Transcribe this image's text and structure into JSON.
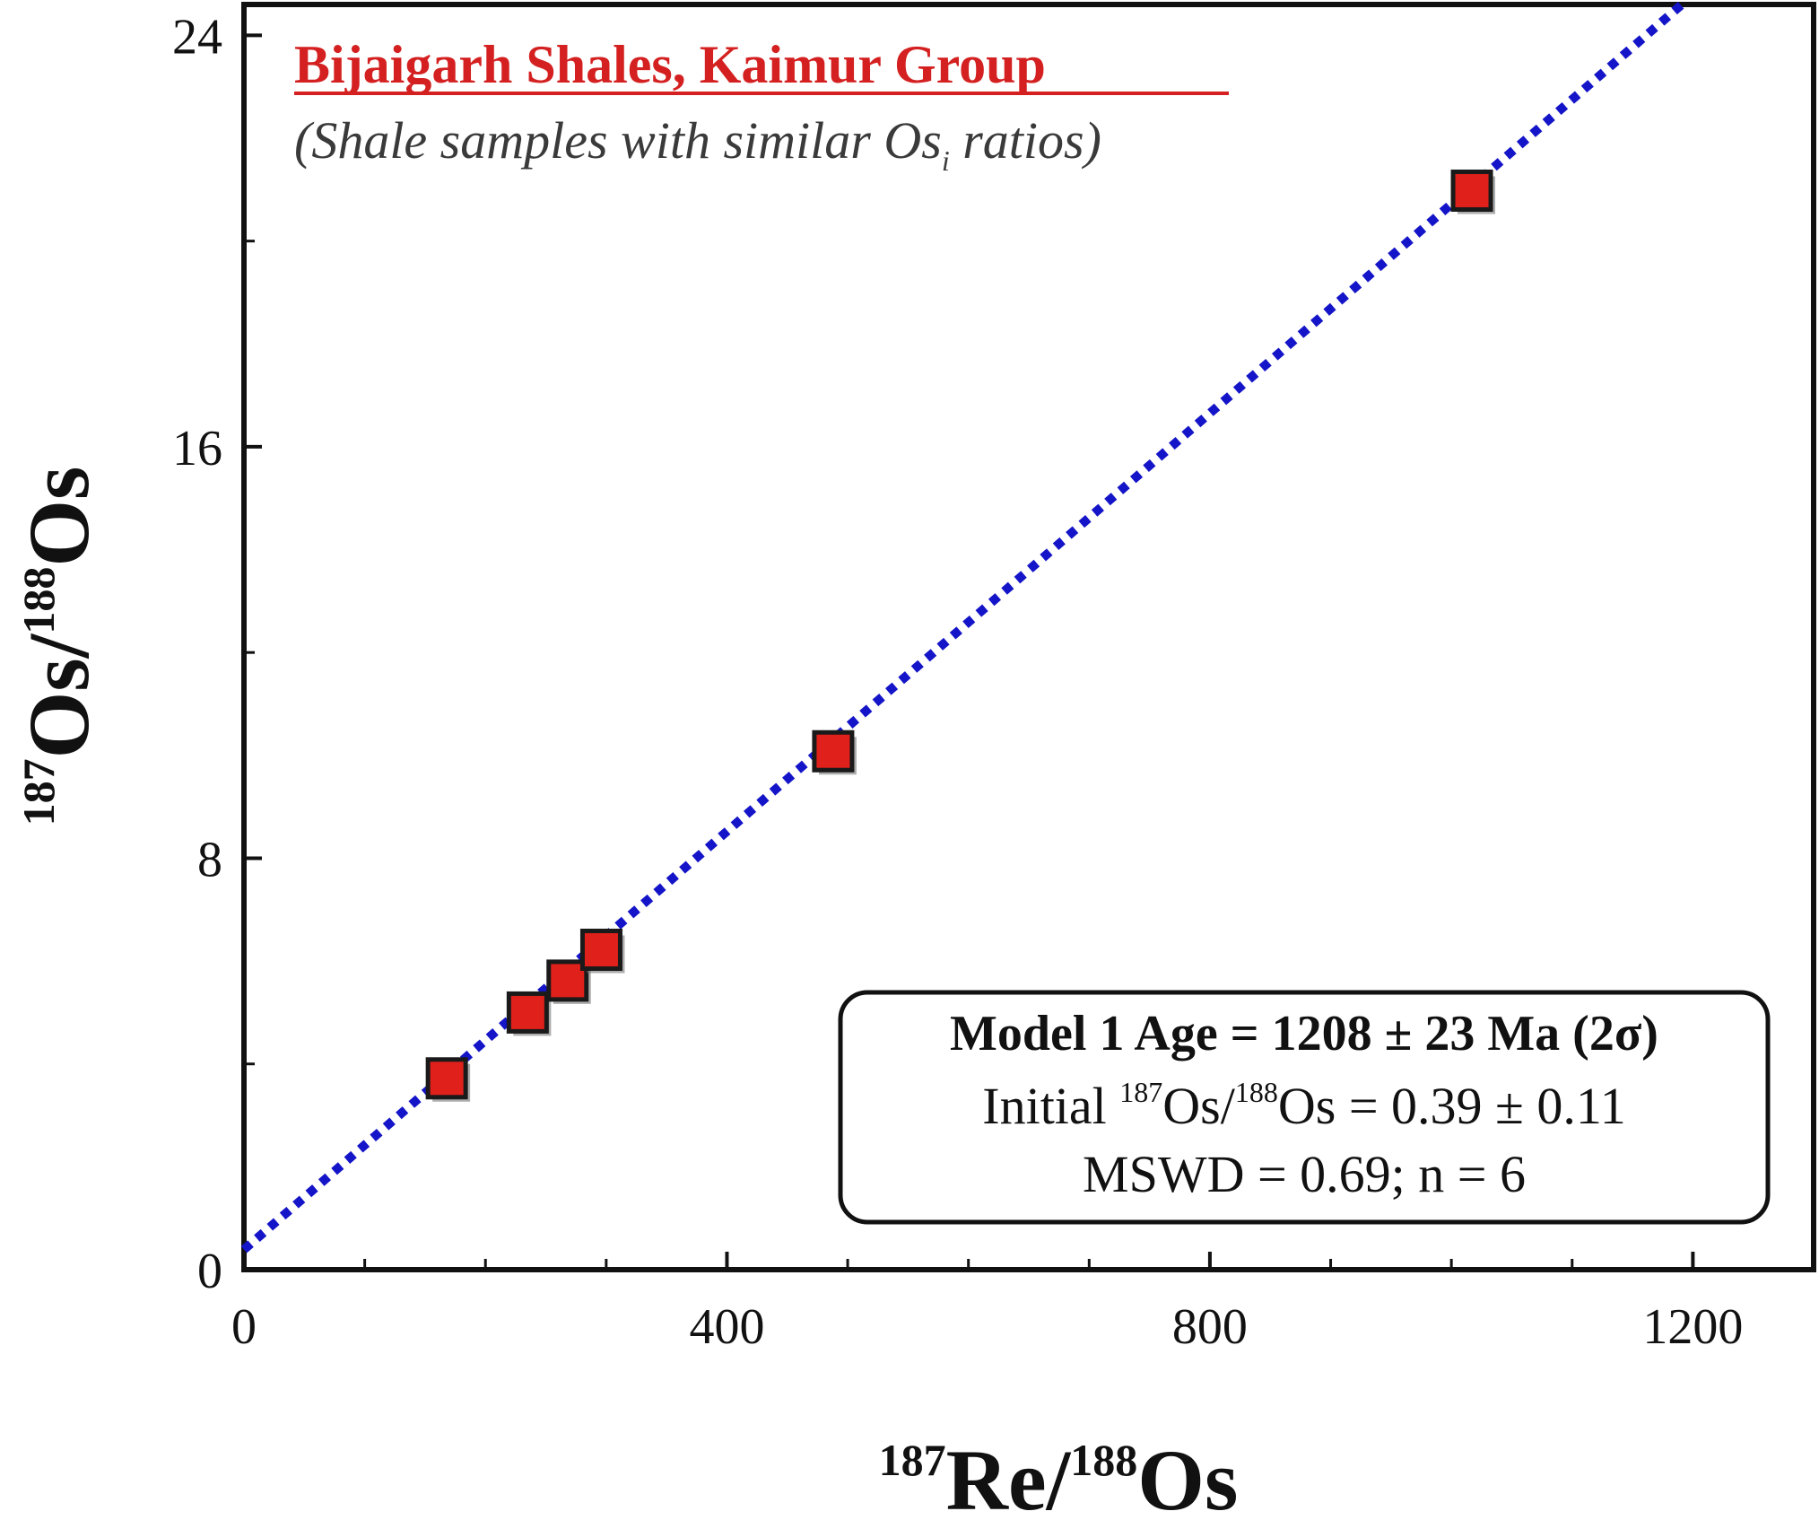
{
  "chart_data": {
    "type": "scatter",
    "title": "Bijaigarh Shales, Kaimur Group",
    "subtitle_prefix": "(Shale samples with similar Os",
    "subtitle_subscript": "i",
    "subtitle_suffix": " ratios)",
    "xlabel": {
      "sup1": "187",
      "main1": "Re/",
      "sup2": "188",
      "main2": "Os"
    },
    "ylabel": {
      "sup1": "187",
      "main1": "Os/",
      "sup2": "188",
      "main2": "Os"
    },
    "xlim": [
      0,
      1300
    ],
    "ylim": [
      0,
      24.6
    ],
    "x_ticks": [
      0,
      400,
      800,
      1200
    ],
    "x_tick_labels": [
      "0",
      "400",
      "800",
      "1200"
    ],
    "x_minor_step": 100,
    "y_ticks": [
      0,
      8,
      16,
      24
    ],
    "y_tick_labels": [
      "0",
      "8",
      "16",
      "24"
    ],
    "y_minor_step": 4,
    "grid": false,
    "series": [
      {
        "name": "Shale samples",
        "marker": "square",
        "color": "#e0201b",
        "points": [
          {
            "x": 168,
            "y": 3.72
          },
          {
            "x": 235,
            "y": 5.0
          },
          {
            "x": 268,
            "y": 5.62
          },
          {
            "x": 296,
            "y": 6.22
          },
          {
            "x": 488,
            "y": 10.08
          },
          {
            "x": 1017,
            "y": 20.98
          }
        ]
      }
    ],
    "fit_line": {
      "intercept": 0.39,
      "slope": 0.02033,
      "color": "#1414c8",
      "style": "dotted"
    },
    "annotation": {
      "line1": "Model 1 Age = 1208 ± 23 Ma (2σ)",
      "line2_prefix": "Initial ",
      "line2_sup1": "187",
      "line2_mid": "Os/",
      "line2_sup2": "188",
      "line2_suffix": "Os = 0.39 ± 0.11",
      "line3": "MSWD = 0.69; n = 6",
      "placement": "bottom-right"
    },
    "colors": {
      "title": "#d42020",
      "subtitle": "#3a3a3a",
      "axis": "#111111"
    }
  }
}
